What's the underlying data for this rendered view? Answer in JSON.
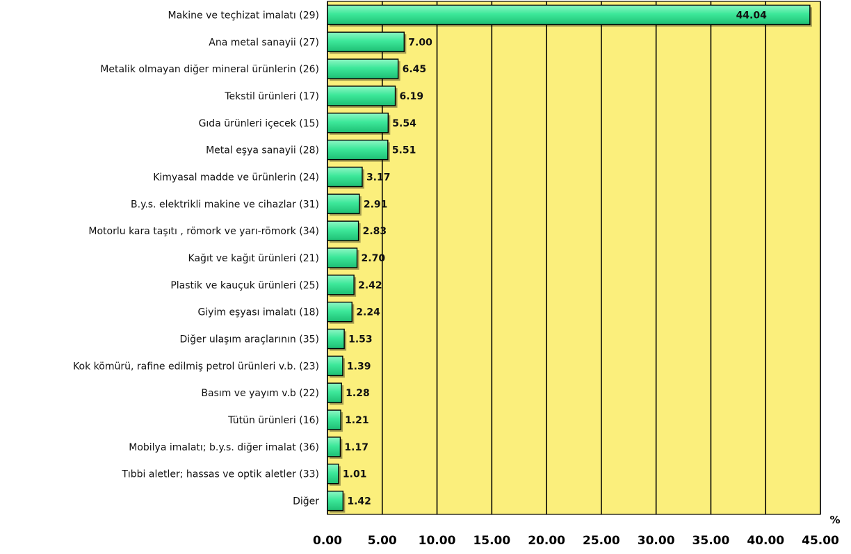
{
  "chart_data": {
    "type": "bar",
    "orientation": "horizontal",
    "categories": [
      "Makine ve teçhizat imalatı (29)",
      "Ana metal sanayii (27)",
      "Metalik olmayan diğer mineral ürünlerin (26)",
      "Tekstil ürünleri (17)",
      "Gıda ürünleri içecek (15)",
      "Metal eşya sanayii (28)",
      "Kimyasal madde ve ürünlerin (24)",
      "B.y.s. elektrikli makine ve cihazlar (31)",
      "Motorlu kara taşıtı , römork ve yarı-römork (34)",
      "Kağıt ve kağıt ürünleri  (21)",
      "Plastik ve kauçuk ürünleri (25)",
      "Giyim eşyası imalatı (18)",
      "Diğer ulaşım araçlarının (35)",
      "Kok kömürü, rafine edilmiş petrol ürünleri v.b. (23)",
      "Basım ve yayım v.b (22)",
      "Tütün ürünleri (16)",
      "Mobilya imalatı; b.y.s. diğer imalat (36)",
      "Tıbbi aletler; hassas ve optik aletler (33)",
      "Diğer"
    ],
    "values": [
      44.04,
      7.0,
      6.45,
      6.19,
      5.54,
      5.51,
      3.17,
      2.91,
      2.83,
      2.7,
      2.42,
      2.24,
      1.53,
      1.39,
      1.28,
      1.21,
      1.17,
      1.01,
      1.42
    ],
    "value_labels": [
      "44.04",
      "7.00",
      "6.45",
      "6.19",
      "5.54",
      "5.51",
      "3.17",
      "2.91",
      "2.83",
      "2.70",
      "2.42",
      "2.24",
      "1.53",
      "1.39",
      "1.28",
      "1.21",
      "1.17",
      "1.01",
      "1.42"
    ],
    "xlim": [
      0,
      45
    ],
    "xticks": [
      "0.00",
      "5.00",
      "10.00",
      "15.00",
      "20.00",
      "25.00",
      "30.00",
      "35.00",
      "40.00",
      "45.00"
    ],
    "x_unit": "%",
    "grid": "vertical",
    "colors": {
      "plot_background": "#FBEF7C",
      "bar_fill": "#3DE89A",
      "bar_border": "#000000",
      "gridline": "#000000"
    }
  }
}
